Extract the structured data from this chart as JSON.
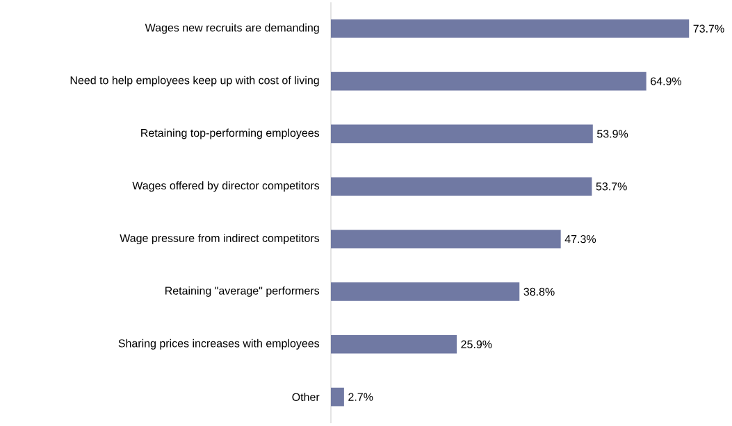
{
  "chart_data": {
    "type": "bar",
    "orientation": "horizontal",
    "categories": [
      "Wages new recruits are demanding",
      "Need to help employees keep up with cost of living",
      "Retaining top-performing employees",
      "Wages offered by director competitors",
      "Wage pressure from indirect competitors",
      "Retaining \"average\" performers",
      "Sharing prices increases with employees",
      "Other"
    ],
    "values": [
      73.7,
      64.9,
      53.9,
      53.7,
      47.3,
      38.8,
      25.9,
      2.7
    ],
    "value_labels": [
      "73.7%",
      "64.9%",
      "53.9%",
      "53.7%",
      "47.3%",
      "38.8%",
      "25.9%",
      "2.7%"
    ],
    "color": "#7079a3"
  }
}
